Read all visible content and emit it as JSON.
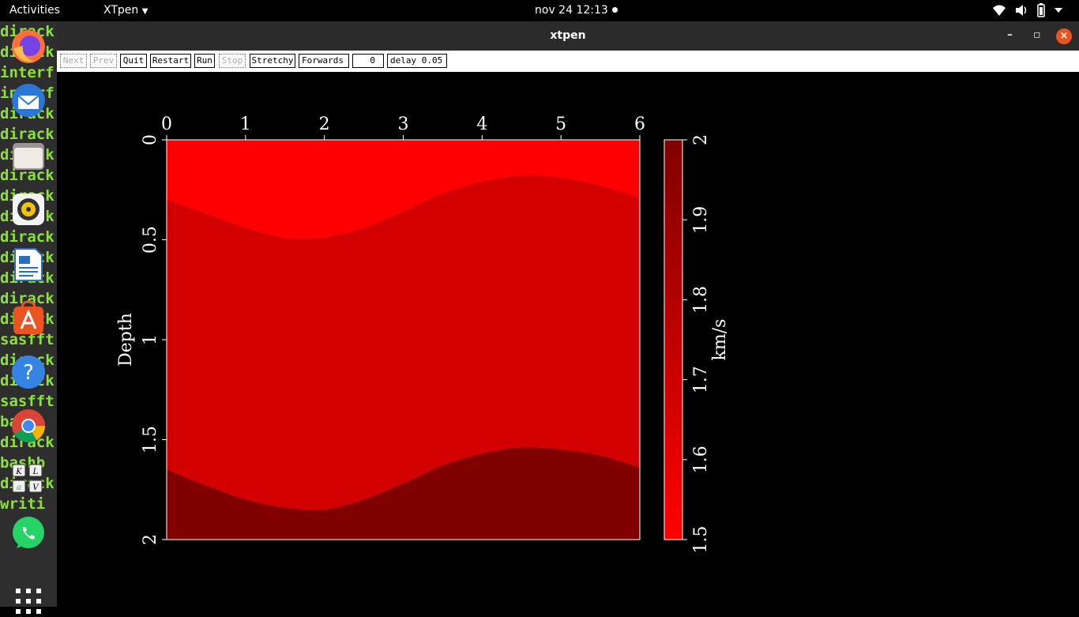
{
  "topbar": {
    "activities": "Activities",
    "app_menu": "XTpen",
    "clock": "nov 24  12:13"
  },
  "terminal_lines": [
    "dirack",
    "dirack",
    "interf",
    "interf",
    "dirack",
    "dirack",
    "dirack",
    "dirack",
    "dirack",
    "dirack",
    "dirack",
    "dirack",
    "dirack",
    "dirack",
    "dirack",
    "sasfft",
    "dirack",
    "dirack",
    "sasfft",
    "bashb",
    "dirack",
    "bashb",
    "dirack",
    "writi"
  ],
  "dock": {
    "apps": [
      {
        "name": "firefox-icon",
        "color": "#ff7139"
      },
      {
        "name": "thunderbird-icon",
        "color": "#2a77d6"
      },
      {
        "name": "files-icon",
        "color": "#d8d4cc"
      },
      {
        "name": "rhythmbox-icon",
        "color": "#f5c211"
      },
      {
        "name": "libreoffice-writer-icon",
        "color": "#2a6fbb"
      },
      {
        "name": "ubuntu-software-icon",
        "color": "#e95420"
      },
      {
        "name": "help-icon",
        "color": "#3584e4"
      },
      {
        "name": "chrome-icon",
        "color": "#4285f4"
      },
      {
        "name": "keyboard-app-icon",
        "color": "#eeeeee"
      },
      {
        "name": "whatsapp-icon",
        "color": "#25d366"
      }
    ]
  },
  "window": {
    "title": "xtpen",
    "minimize": "–",
    "maximize": "▫",
    "close": "×"
  },
  "toolbar": {
    "next": "Next",
    "prev": "Prev",
    "quit": "Quit",
    "restart": "Restart",
    "run": "Run",
    "stop": "Stop",
    "stretchy": "Stretchy",
    "forwards": "Forwards",
    "frame": "0",
    "delay": "delay 0.05"
  },
  "chart_data": {
    "type": "heatmap",
    "x_ticks": [
      "0",
      "1",
      "2",
      "3",
      "4",
      "5",
      "6"
    ],
    "xlim": [
      0,
      6
    ],
    "y_ticks": [
      "0",
      "0.5",
      "1",
      "1.5",
      "2"
    ],
    "ylim": [
      0,
      2
    ],
    "ylabel": "Depth",
    "colorbar_label": "km/s",
    "colorbar_ticks": [
      "1.5",
      "1.6",
      "1.7",
      "1.8",
      "1.9",
      "2"
    ],
    "colorbar_range": [
      1.5,
      2
    ],
    "layers": [
      {
        "velocity": 1.5,
        "color": "#ff0000"
      },
      {
        "velocity": 1.7,
        "color": "#d20000"
      },
      {
        "velocity": 1.95,
        "color": "#800000"
      }
    ],
    "interfaces": [
      {
        "x": [
          0,
          0.5,
          1,
          1.5,
          2,
          2.5,
          3,
          3.5,
          4,
          4.5,
          5,
          5.5,
          6
        ],
        "depth": [
          0.3,
          0.37,
          0.44,
          0.49,
          0.49,
          0.44,
          0.36,
          0.27,
          0.21,
          0.18,
          0.19,
          0.23,
          0.29
        ]
      },
      {
        "x": [
          0,
          0.5,
          1,
          1.5,
          2,
          2.5,
          3,
          3.5,
          4,
          4.5,
          5,
          5.5,
          6
        ],
        "depth": [
          1.65,
          1.73,
          1.8,
          1.84,
          1.85,
          1.8,
          1.72,
          1.63,
          1.57,
          1.54,
          1.55,
          1.58,
          1.64
        ]
      }
    ]
  }
}
